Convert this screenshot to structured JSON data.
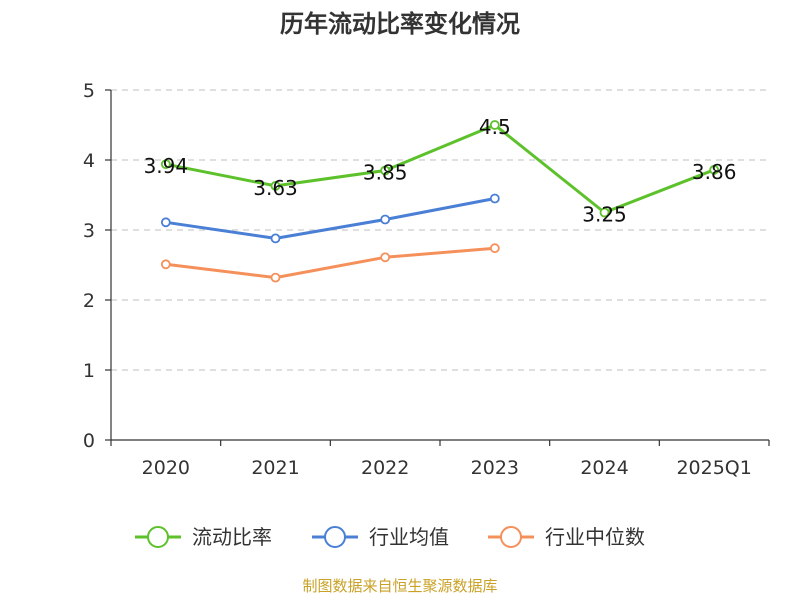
{
  "chart_data": {
    "type": "line",
    "title": "历年流动比率变化情况",
    "categories": [
      "2020",
      "2021",
      "2022",
      "2023",
      "2024",
      "2025Q1"
    ],
    "ylim": [
      0,
      5
    ],
    "yticks": [
      "0",
      "1",
      "2",
      "3",
      "4",
      "5"
    ],
    "grid": true,
    "legend_position": "bottom",
    "series": [
      {
        "name": "流动比率",
        "color": "#5cc12a",
        "values": [
          3.94,
          3.63,
          3.85,
          4.5,
          3.25,
          3.86
        ],
        "labels": [
          "3.94",
          "3.63",
          "3.85",
          "4.5",
          "3.25",
          "3.86"
        ]
      },
      {
        "name": "行业均值",
        "color": "#4a7fd6",
        "values": [
          3.11,
          2.88,
          3.15,
          3.45,
          null,
          null
        ]
      },
      {
        "name": "行业中位数",
        "color": "#f5905a",
        "values": [
          2.51,
          2.32,
          2.61,
          2.74,
          null,
          null
        ]
      }
    ],
    "source": "制图数据来自恒生聚源数据库"
  }
}
